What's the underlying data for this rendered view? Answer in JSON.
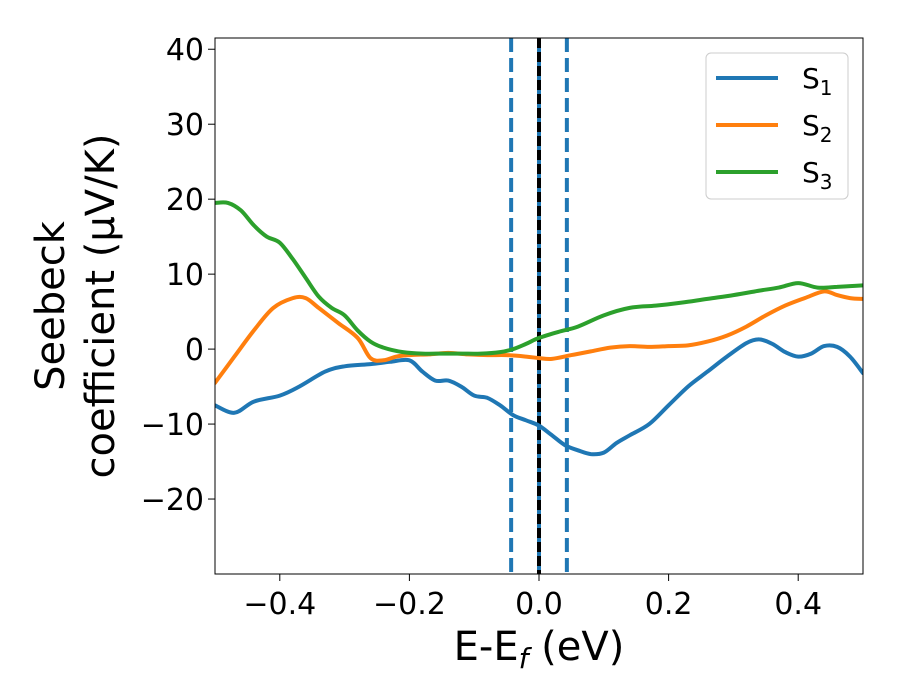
{
  "chart_data": {
    "type": "line",
    "xlabel": "E-E",
    "xlabel_sub": "f",
    "xlabel_unit": " (eV)",
    "ylabel_line1": "Seebeck",
    "ylabel_line2": "coefficient  (μV/K)",
    "xlim": [
      -0.5,
      0.5
    ],
    "ylim": [
      -30,
      41.5
    ],
    "x_ticks": [
      -0.4,
      -0.2,
      0.0,
      0.2,
      0.4
    ],
    "x_tick_labels": [
      "−0.4",
      "−0.2",
      "0.0",
      "0.2",
      "0.4"
    ],
    "y_ticks": [
      -20,
      -10,
      0,
      10,
      20,
      30,
      40
    ],
    "y_tick_labels": [
      "−20",
      "−10",
      "0",
      "10",
      "20",
      "30",
      "40"
    ],
    "grid": false,
    "legend_position": "top-right",
    "vertical_lines": [
      {
        "x": -0.043,
        "style": "dashed",
        "color": "#1f77b4"
      },
      {
        "x": 0.0,
        "style": "solid",
        "color": "#1f77b4"
      },
      {
        "x": 0.0,
        "style": "dashed",
        "color": "#000000"
      },
      {
        "x": 0.043,
        "style": "dashed",
        "color": "#1f77b4"
      }
    ],
    "series": [
      {
        "name": "S",
        "sub": "1",
        "color": "#1f77b4",
        "x": [
          -0.5,
          -0.47,
          -0.44,
          -0.4,
          -0.37,
          -0.33,
          -0.3,
          -0.26,
          -0.23,
          -0.2,
          -0.18,
          -0.16,
          -0.14,
          -0.12,
          -0.1,
          -0.08,
          -0.06,
          -0.04,
          -0.02,
          0.0,
          0.02,
          0.04,
          0.06,
          0.08,
          0.1,
          0.12,
          0.14,
          0.17,
          0.2,
          0.23,
          0.26,
          0.29,
          0.32,
          0.34,
          0.36,
          0.38,
          0.4,
          0.42,
          0.44,
          0.46,
          0.48,
          0.5
        ],
        "y": [
          -7.5,
          -8.5,
          -7.0,
          -6.2,
          -5.0,
          -3.0,
          -2.3,
          -2.0,
          -1.7,
          -1.5,
          -3.0,
          -4.2,
          -4.2,
          -5.0,
          -6.2,
          -6.5,
          -7.5,
          -8.8,
          -9.5,
          -10.2,
          -11.5,
          -12.8,
          -13.5,
          -14.0,
          -13.8,
          -12.5,
          -11.5,
          -10.0,
          -7.5,
          -5.0,
          -3.0,
          -1.0,
          0.8,
          1.3,
          0.7,
          -0.4,
          -1.0,
          -0.6,
          0.4,
          0.3,
          -1.0,
          -3.2
        ]
      },
      {
        "name": "S",
        "sub": "2",
        "color": "#ff7f0e",
        "x": [
          -0.5,
          -0.47,
          -0.44,
          -0.41,
          -0.38,
          -0.36,
          -0.34,
          -0.31,
          -0.28,
          -0.26,
          -0.24,
          -0.22,
          -0.2,
          -0.17,
          -0.14,
          -0.11,
          -0.08,
          -0.05,
          -0.02,
          0.0,
          0.02,
          0.05,
          0.08,
          0.11,
          0.14,
          0.17,
          0.2,
          0.23,
          0.26,
          0.29,
          0.32,
          0.35,
          0.38,
          0.41,
          0.44,
          0.46,
          0.48,
          0.5
        ],
        "y": [
          -4.5,
          -1.0,
          2.5,
          5.5,
          6.8,
          6.8,
          5.5,
          3.5,
          1.5,
          -1.2,
          -1.5,
          -1.0,
          -0.8,
          -0.7,
          -0.5,
          -0.7,
          -0.8,
          -0.8,
          -1.0,
          -1.2,
          -1.3,
          -0.8,
          -0.3,
          0.2,
          0.4,
          0.3,
          0.4,
          0.5,
          1.0,
          1.8,
          3.0,
          4.5,
          5.8,
          6.8,
          7.7,
          7.2,
          6.8,
          6.7
        ]
      },
      {
        "name": "S",
        "sub": "3",
        "color": "#2ca02c",
        "x": [
          -0.5,
          -0.48,
          -0.46,
          -0.44,
          -0.42,
          -0.4,
          -0.38,
          -0.36,
          -0.34,
          -0.32,
          -0.3,
          -0.28,
          -0.26,
          -0.24,
          -0.21,
          -0.18,
          -0.15,
          -0.12,
          -0.09,
          -0.06,
          -0.04,
          -0.02,
          0.0,
          0.03,
          0.06,
          0.1,
          0.14,
          0.18,
          0.22,
          0.26,
          0.3,
          0.34,
          0.37,
          0.4,
          0.43,
          0.46,
          0.48,
          0.5
        ],
        "y": [
          19.5,
          19.5,
          18.5,
          16.5,
          15.0,
          14.2,
          12.0,
          9.5,
          7.0,
          5.5,
          4.5,
          2.5,
          1.0,
          0.2,
          -0.4,
          -0.6,
          -0.6,
          -0.6,
          -0.6,
          -0.4,
          0.0,
          0.7,
          1.5,
          2.3,
          3.0,
          4.5,
          5.5,
          5.8,
          6.2,
          6.7,
          7.2,
          7.8,
          8.2,
          8.8,
          8.2,
          8.3,
          8.4,
          8.5
        ]
      }
    ]
  }
}
